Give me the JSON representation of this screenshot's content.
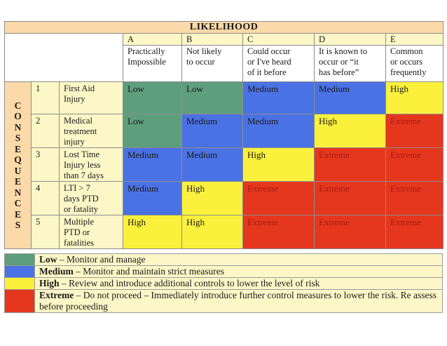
{
  "title": "LIKELIHOOD",
  "consequences_label": "CONSEQUENCES",
  "likelihood_columns": [
    {
      "letter": "A",
      "desc_lines": [
        "Practically",
        "Impossible"
      ]
    },
    {
      "letter": "B",
      "desc_lines": [
        "Not likely",
        "to occur"
      ]
    },
    {
      "letter": "C",
      "desc_lines": [
        "Could occur",
        "or I've heard",
        "of it before"
      ]
    },
    {
      "letter": "D",
      "desc_lines": [
        "It is known to",
        "occur or “it",
        "has before”"
      ]
    },
    {
      "letter": "E",
      "desc_lines": [
        "Common",
        "or occurs",
        "frequently"
      ]
    }
  ],
  "consequence_rows": [
    {
      "num": "1",
      "label_lines": [
        "First Aid",
        "Injury"
      ],
      "risks": [
        "Low",
        "Low",
        "Medium",
        "Medium",
        "High"
      ]
    },
    {
      "num": "2",
      "label_lines": [
        "Medical",
        "treatment",
        "injury"
      ],
      "risks": [
        "Low",
        "Medium",
        "Medium",
        "High",
        "Extreme"
      ]
    },
    {
      "num": "3",
      "label_lines": [
        "Lost Time",
        "Injury less",
        "than 7 days"
      ],
      "risks": [
        "Medium",
        "Medium",
        "High",
        "Extreme",
        "Extreme"
      ]
    },
    {
      "num": "4",
      "label_lines": [
        "LTI > 7",
        "days PTD",
        "or fatality"
      ],
      "risks": [
        "Medium",
        "High",
        "Extreme",
        "Extreme",
        "Extreme"
      ]
    },
    {
      "num": "5",
      "label_lines": [
        "Multiple",
        "PTD or",
        "fatalities"
      ],
      "risks": [
        "High",
        "High",
        "Extreme",
        "Extreme",
        "Extreme"
      ]
    }
  ],
  "risk_colors": {
    "Low": "#5e9e7d",
    "Medium": "#4a72e4",
    "High": "#fbf13d",
    "Extreme": "#e5371e"
  },
  "legend": [
    {
      "level": "Low",
      "dash": " – ",
      "text": "Monitor and manage"
    },
    {
      "level": "Medium",
      "dash": " – ",
      "text": "Monitor and maintain strict measures"
    },
    {
      "level": "High",
      "dash": " – ",
      "text": "Review and introduce additional controls to lower the level of risk"
    },
    {
      "level": "Extreme",
      "dash": " – ",
      "text": "Do not proceed – Immediately introduce further control measures to lower the risk.  Re assess before proceeding"
    }
  ]
}
